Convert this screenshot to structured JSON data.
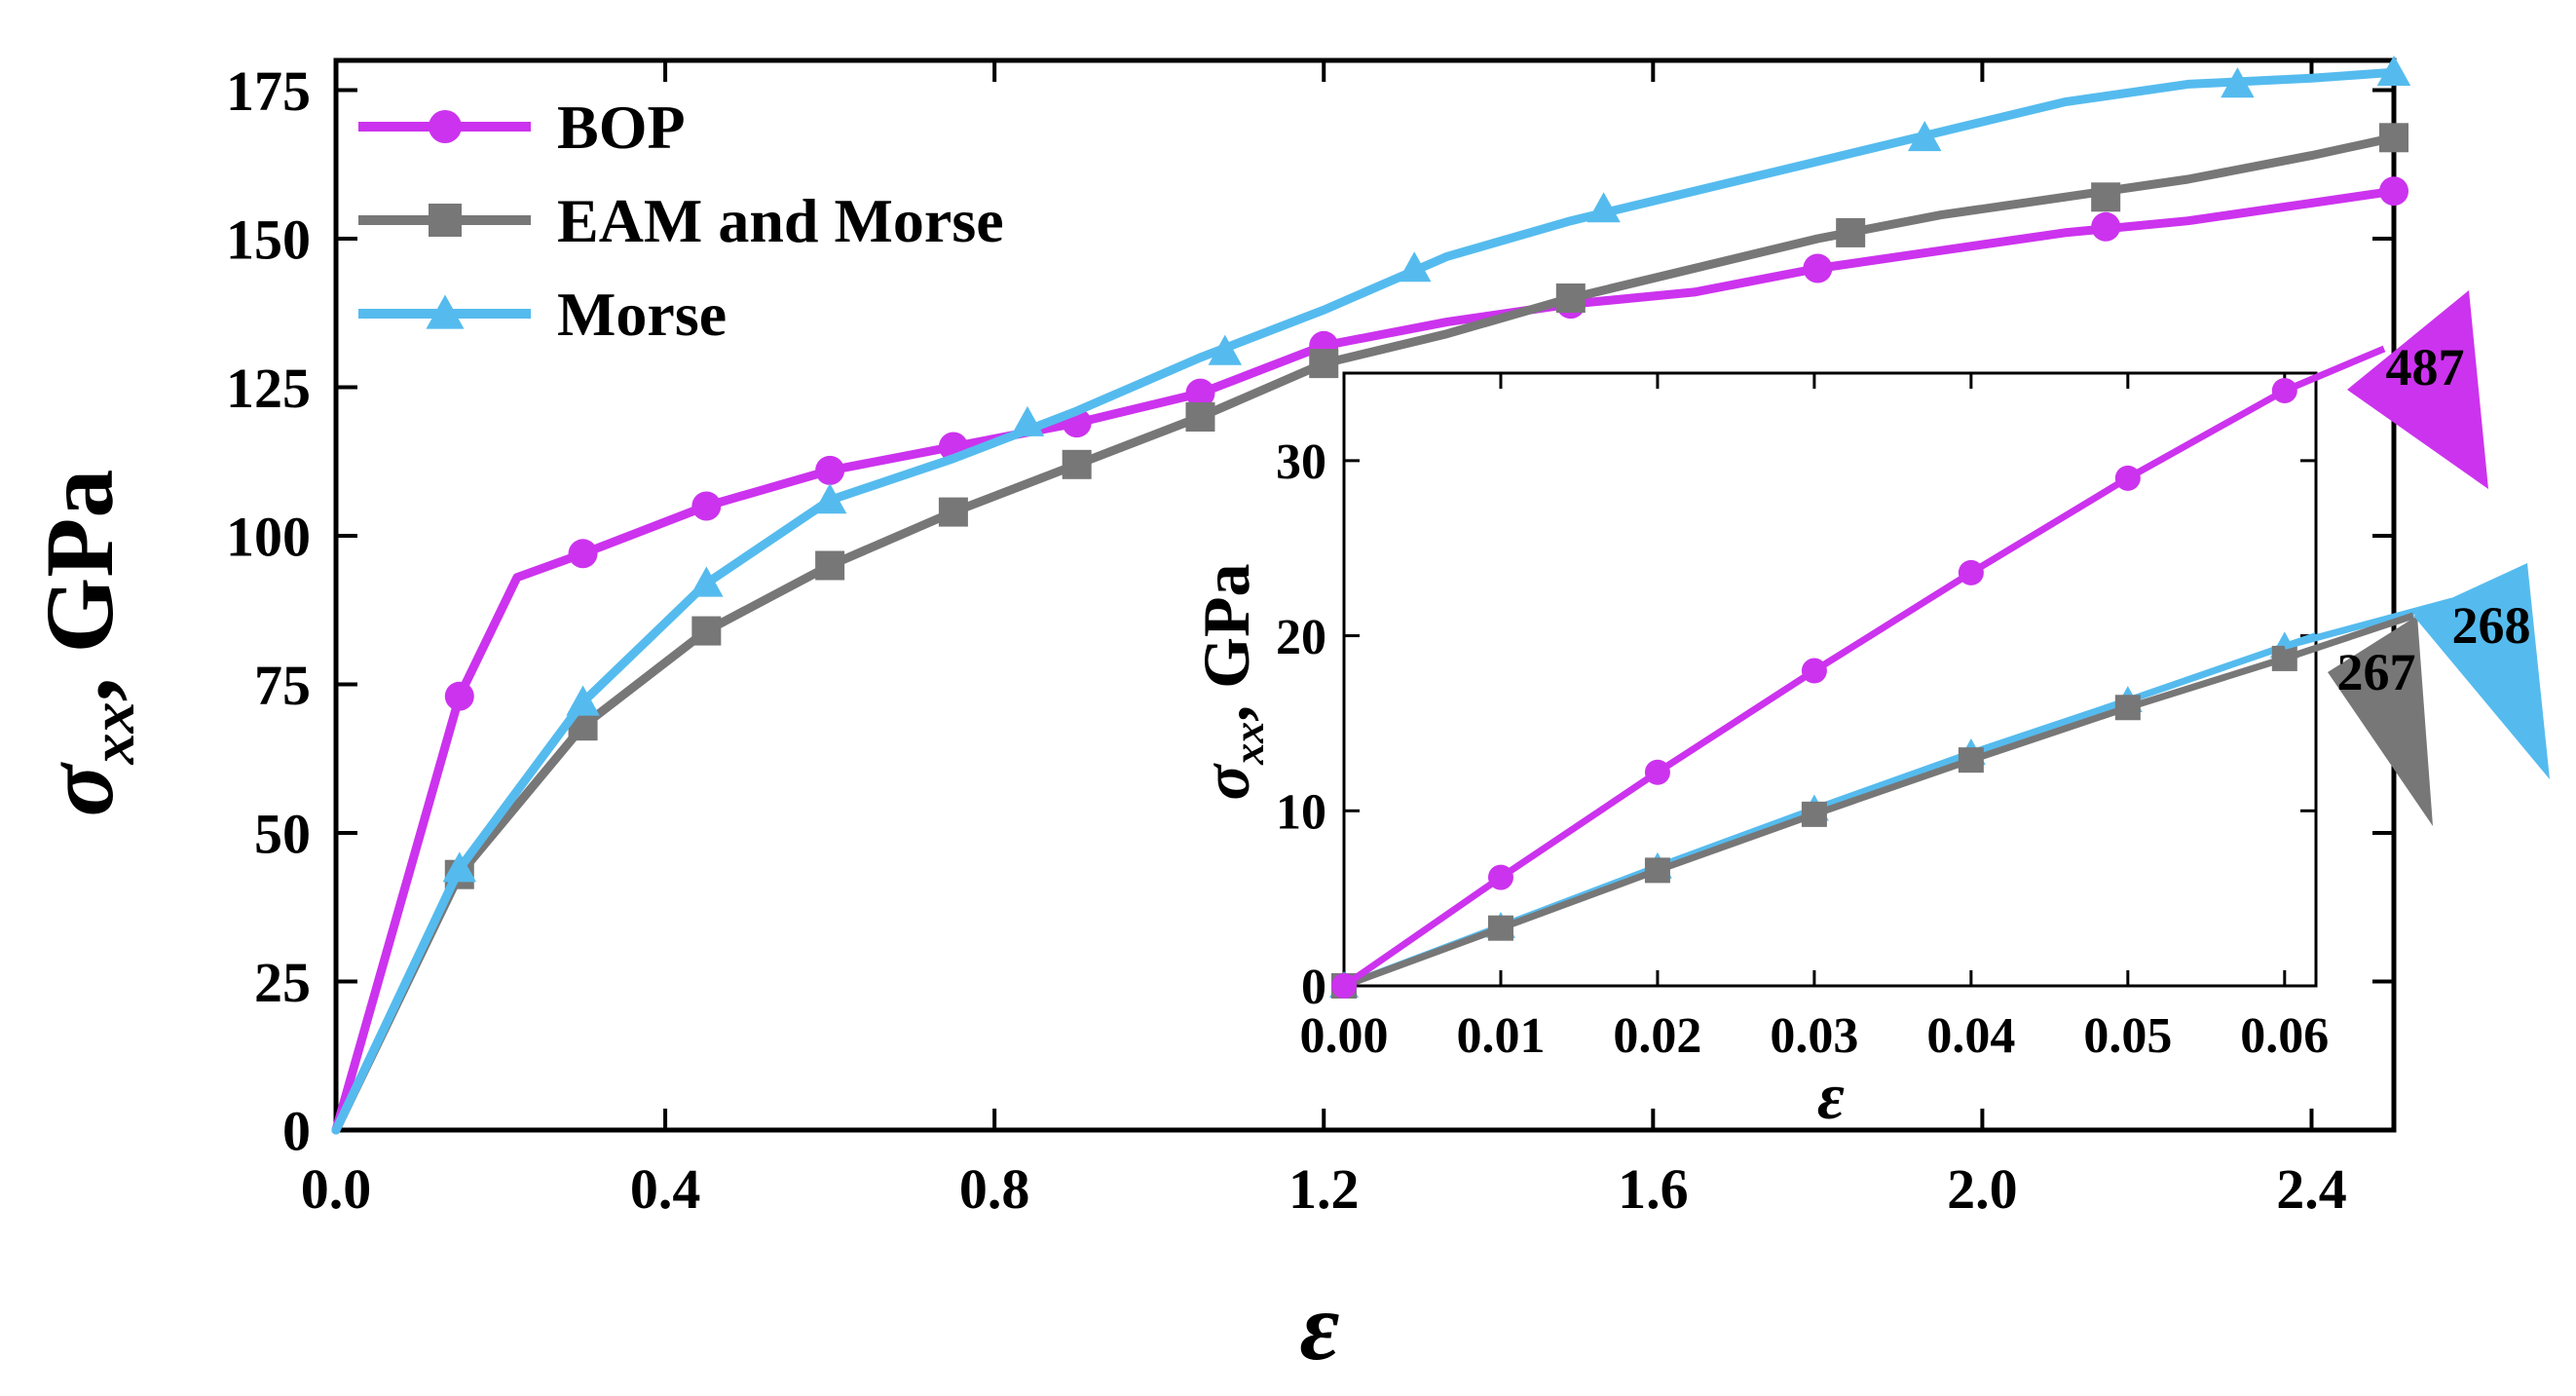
{
  "chart_data": [
    {
      "type": "line",
      "xlabel": "ε",
      "ylabel": "σ",
      "ylabel_subscript": "xx",
      "ylabel_unit": ", GPa",
      "xlim": [
        0,
        2.5
      ],
      "ylim": [
        0,
        180
      ],
      "xticks": [
        0.0,
        0.4,
        0.8,
        1.2,
        1.6,
        2.0,
        2.4
      ],
      "xtick_labels": [
        "0.0",
        "0.4",
        "0.8",
        "1.2",
        "1.6",
        "2.0",
        "2.4"
      ],
      "yticks": [
        0,
        25,
        50,
        75,
        100,
        125,
        150,
        175
      ],
      "ytick_labels": [
        "0",
        "25",
        "50",
        "75",
        "100",
        "125",
        "150",
        "175"
      ],
      "legend_position": "top-left",
      "series": [
        {
          "name": "BOP",
          "color": "#CC33EE",
          "marker": "circle",
          "x": [
            0.0,
            0.15,
            0.22,
            0.3,
            0.45,
            0.6,
            0.75,
            0.9,
            1.05,
            1.2,
            1.35,
            1.5,
            1.65,
            1.8,
            1.95,
            2.1,
            2.25,
            2.4,
            2.5
          ],
          "y": [
            0,
            73,
            93,
            97,
            105,
            111,
            115,
            119,
            124,
            132,
            136,
            139,
            141,
            145,
            148,
            151,
            153,
            156,
            158
          ],
          "marker_x": [
            0.15,
            0.3,
            0.45,
            0.6,
            0.75,
            0.9,
            1.05,
            1.2,
            1.5,
            1.8,
            2.15,
            2.5
          ],
          "marker_y": [
            73,
            97,
            105,
            111,
            115,
            119,
            124,
            132,
            139,
            145,
            152,
            158
          ]
        },
        {
          "name": "EAM and Morse",
          "color": "#777777",
          "marker": "square",
          "x": [
            0.0,
            0.15,
            0.3,
            0.45,
            0.6,
            0.75,
            0.9,
            1.05,
            1.2,
            1.35,
            1.5,
            1.65,
            1.8,
            1.95,
            2.1,
            2.25,
            2.4,
            2.5
          ],
          "y": [
            0,
            43,
            68,
            84,
            95,
            104,
            112,
            120,
            129,
            134,
            140,
            145,
            150,
            154,
            157,
            160,
            164,
            167
          ],
          "marker_x": [
            0.15,
            0.3,
            0.45,
            0.6,
            0.75,
            0.9,
            1.05,
            1.2,
            1.5,
            1.84,
            2.15,
            2.5
          ],
          "marker_y": [
            43,
            68,
            84,
            95,
            104,
            112,
            120,
            129,
            140,
            151,
            157,
            167
          ]
        },
        {
          "name": "Morse",
          "color": "#55BBEE",
          "marker": "triangle",
          "x": [
            0.0,
            0.15,
            0.3,
            0.45,
            0.6,
            0.75,
            0.9,
            1.05,
            1.2,
            1.35,
            1.5,
            1.65,
            1.8,
            1.95,
            2.1,
            2.25,
            2.4,
            2.5
          ],
          "y": [
            0,
            44,
            72,
            92,
            106,
            113,
            121,
            130,
            138,
            147,
            153,
            158,
            163,
            168,
            173,
            176,
            177,
            178
          ],
          "marker_x": [
            0.15,
            0.3,
            0.45,
            0.6,
            0.84,
            1.08,
            1.31,
            1.54,
            1.93,
            2.31,
            2.5
          ],
          "marker_y": [
            44,
            72,
            92,
            106,
            119,
            131,
            145,
            155,
            167,
            176,
            178
          ]
        }
      ]
    },
    {
      "type": "line",
      "position": "inset",
      "xlabel": "ε",
      "ylabel": "σ",
      "ylabel_subscript": "xx",
      "ylabel_unit": ", GPa",
      "xlim": [
        0,
        0.062
      ],
      "ylim": [
        0,
        35
      ],
      "xticks": [
        0.0,
        0.01,
        0.02,
        0.03,
        0.04,
        0.05,
        0.06
      ],
      "xtick_labels": [
        "0.00",
        "0.01",
        "0.02",
        "0.03",
        "0.04",
        "0.05",
        "0.06"
      ],
      "yticks": [
        0,
        10,
        20,
        30
      ],
      "ytick_labels": [
        "0",
        "10",
        "20",
        "30"
      ],
      "series": [
        {
          "name": "BOP",
          "color": "#CC33EE",
          "marker": "circle",
          "x": [
            0.0,
            0.01,
            0.02,
            0.03,
            0.04,
            0.05,
            0.06
          ],
          "y": [
            0,
            6.2,
            12.2,
            18.0,
            23.6,
            29.0,
            34.0
          ]
        },
        {
          "name": "EAM and Morse",
          "color": "#777777",
          "marker": "square",
          "x": [
            0.0,
            0.01,
            0.02,
            0.03,
            0.04,
            0.05,
            0.06
          ],
          "y": [
            0,
            3.3,
            6.6,
            9.8,
            12.9,
            15.9,
            18.7
          ]
        },
        {
          "name": "Morse",
          "color": "#55BBEE",
          "marker": "triangle",
          "x": [
            0.0,
            0.01,
            0.02,
            0.03,
            0.04,
            0.05,
            0.06,
            0.062
          ],
          "y": [
            0,
            3.4,
            6.8,
            10.1,
            13.3,
            16.3,
            19.4,
            20.0
          ]
        }
      ],
      "slope_annotations": [
        {
          "label": "487",
          "color": "#CC33EE"
        },
        {
          "label": "267",
          "color": "#777777"
        },
        {
          "label": "268",
          "color": "#55BBEE"
        }
      ]
    }
  ]
}
